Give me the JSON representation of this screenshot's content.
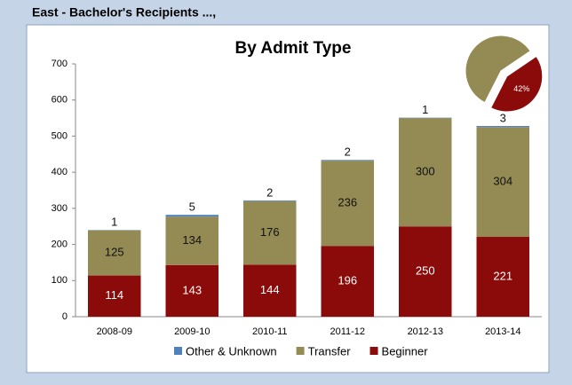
{
  "header": "East - Bachelor's Recipients ...,",
  "chart_data": [
    {
      "type": "bar",
      "stacked": true,
      "title": "By Admit Type",
      "categories": [
        "2008-09",
        "2009-10",
        "2010-11",
        "2011-12",
        "2012-13",
        "2013-14"
      ],
      "series": [
        {
          "name": "Beginner",
          "color": "#8b0a0a",
          "values": [
            114,
            143,
            144,
            196,
            250,
            221
          ]
        },
        {
          "name": "Transfer",
          "color": "#948a54",
          "values": [
            125,
            134,
            176,
            236,
            300,
            304
          ]
        },
        {
          "name": "Other & Unknown",
          "color": "#4f81bd",
          "values": [
            1,
            5,
            2,
            2,
            1,
            3
          ]
        }
      ],
      "ylim": [
        0,
        700
      ],
      "yticks": [
        0,
        100,
        200,
        300,
        400,
        500,
        600,
        700
      ],
      "grid": false,
      "legend": "bottom"
    },
    {
      "type": "pie",
      "values": [
        58,
        42
      ],
      "value_labels": [
        null,
        "42%"
      ],
      "colors": [
        "#948a54",
        "#8b0a0a"
      ]
    }
  ]
}
